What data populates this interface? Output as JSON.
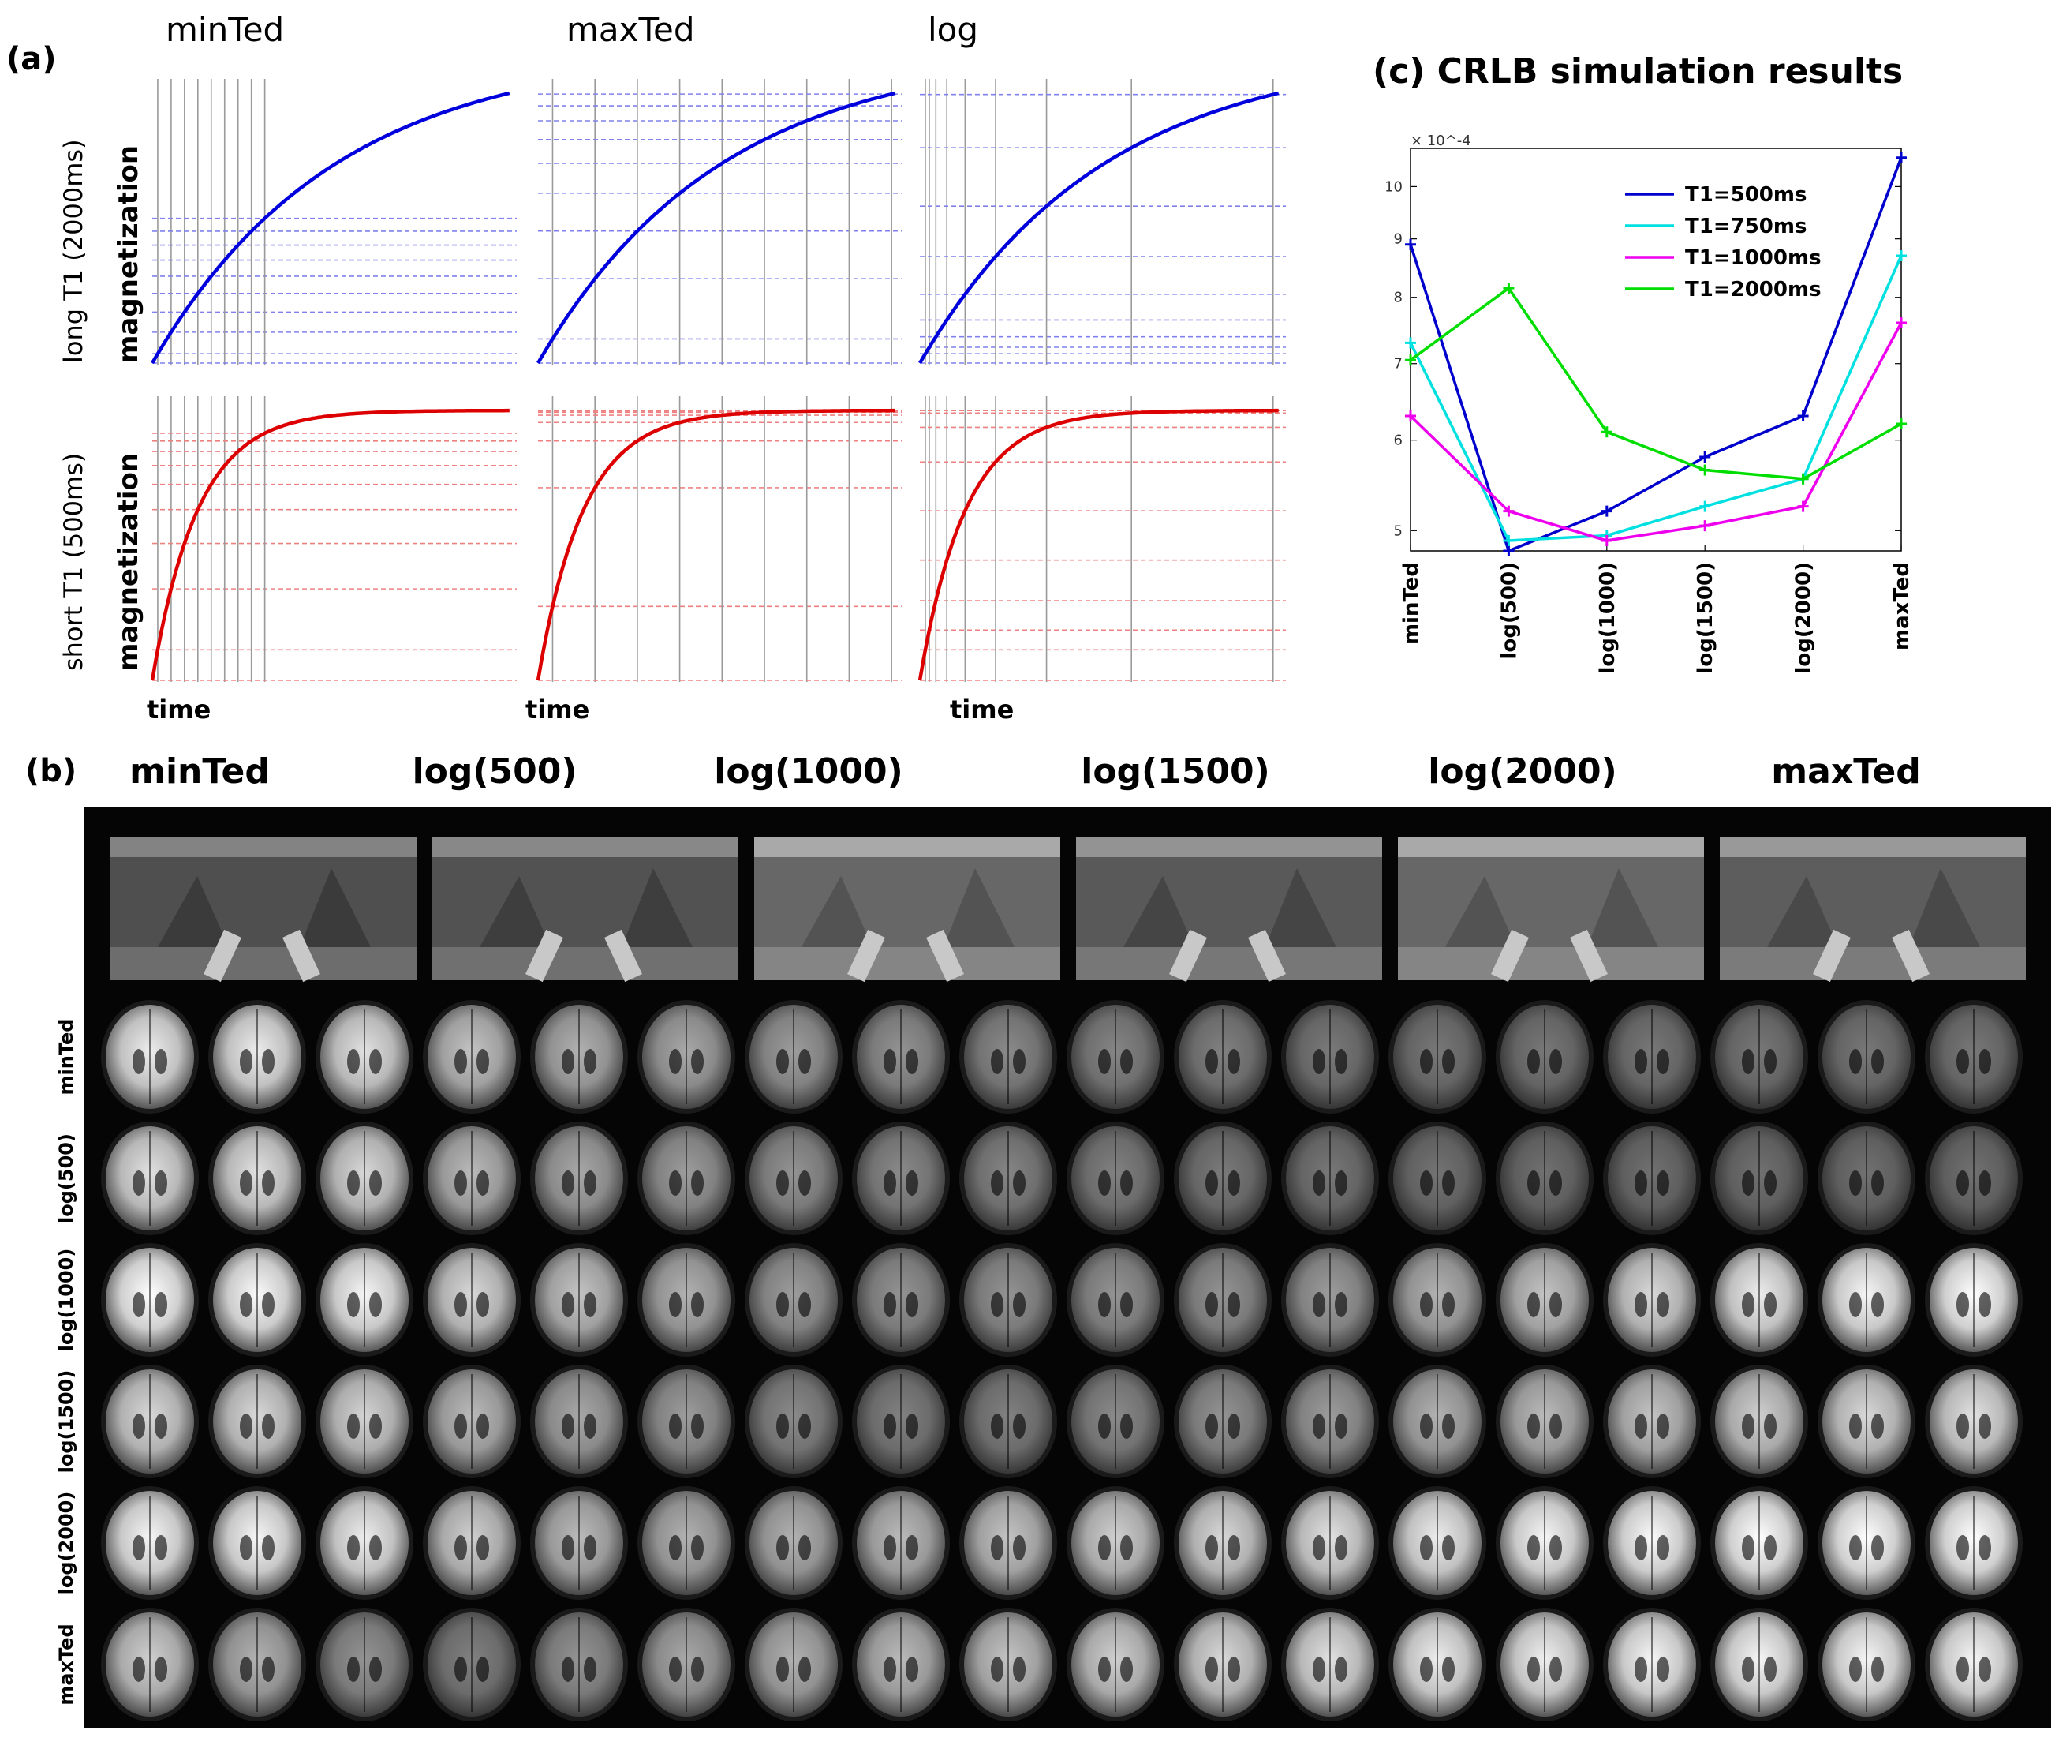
{
  "panel_a": {
    "letter": "(a)",
    "columns": [
      "minTed",
      "maxTed",
      "log"
    ],
    "rows": [
      {
        "label": "long T1 (2000ms)",
        "sublabel": "magnetization",
        "color": "#0000dd",
        "guide_color": "#8080ee",
        "t1_ms": 2000
      },
      {
        "label": "short T1 (500ms)",
        "sublabel": "magnetization",
        "color": "#dd0000",
        "guide_color": "#ee8080",
        "t1_ms": 500
      }
    ],
    "xlabel": "time"
  },
  "panel_b": {
    "letter": "(b)",
    "columns": [
      "minTed",
      "log(500)",
      "log(1000)",
      "log(1500)",
      "log(2000)",
      "maxTed"
    ],
    "rows": [
      "minTed",
      "log(500)",
      "log(1000)",
      "log(1500)",
      "log(2000)",
      "maxTed"
    ]
  },
  "chart_data": {
    "type": "line",
    "title": "(c) CRLB simulation results",
    "exponent_label": "× 10^-4",
    "y_scale": "log",
    "ylim": [
      4.8,
      10.8
    ],
    "yticks": [
      5,
      6,
      7,
      8,
      9,
      10
    ],
    "categories": [
      "minTed",
      "log(500)",
      "log(1000)",
      "log(1500)",
      "log(2000)",
      "maxTed"
    ],
    "legend_position": "top-right",
    "grid": false,
    "series": [
      {
        "name": "T1=500ms",
        "color": "#0000cc",
        "values": [
          8.9,
          4.8,
          5.2,
          5.8,
          6.3,
          10.6
        ]
      },
      {
        "name": "T1=750ms",
        "color": "#00e0e0",
        "values": [
          7.3,
          4.9,
          4.95,
          5.25,
          5.55,
          8.7
        ]
      },
      {
        "name": "T1=1000ms",
        "color": "#ee00ee",
        "values": [
          6.3,
          5.2,
          4.9,
          5.05,
          5.25,
          7.6
        ]
      },
      {
        "name": "T1=2000ms",
        "color": "#00dd00",
        "values": [
          7.05,
          8.15,
          6.1,
          5.65,
          5.55,
          6.2
        ]
      }
    ]
  }
}
